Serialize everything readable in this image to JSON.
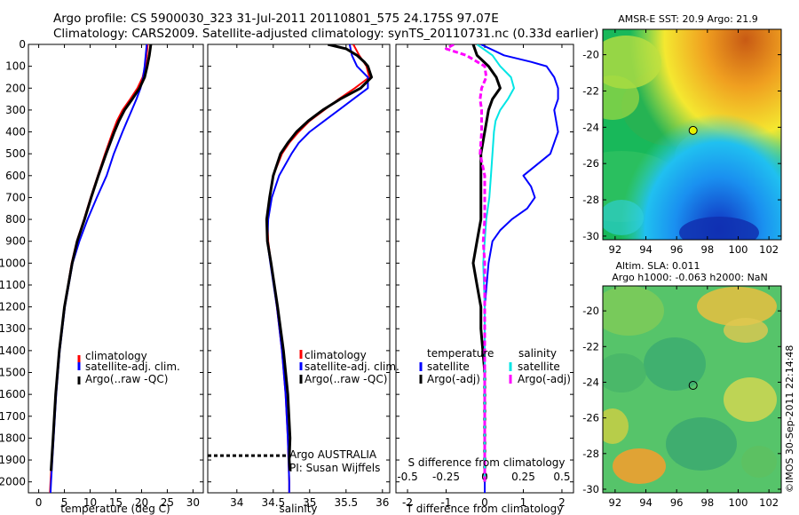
{
  "title_line1": "Argo profile: CS 5900030_323 31-Jul-2011 20110801_575 24.175S 97.07E",
  "title_line2": "Climatology: CARS2009. Satellite-adjusted climatology: synTS_20110731.nc (0.33d earlier)",
  "side_stamp": "©IMOS 30-Sep-2011 22:14:48",
  "colors": {
    "climatology": "#ff0000",
    "satellite": "#0000ff",
    "argo": "#000000",
    "cyan": "#00e5e5",
    "magenta": "#ff00ff"
  },
  "chart_data": [
    {
      "type": "line",
      "xlabel": "temperature (deg C)",
      "xlim": [
        -2,
        32
      ],
      "xticks": [
        0,
        5,
        10,
        15,
        20,
        25,
        30
      ],
      "ylim": [
        0,
        2050
      ],
      "yticks": [
        0,
        100,
        200,
        300,
        400,
        500,
        600,
        700,
        800,
        900,
        1000,
        1100,
        1200,
        1300,
        1400,
        1500,
        1600,
        1700,
        1800,
        1900,
        2000
      ],
      "legend": [
        "climatology",
        "satellite-adj. clim.",
        "Argo(..raw -QC)"
      ],
      "series": [
        {
          "name": "climatology",
          "color": "#ff0000",
          "depth": [
            0,
            50,
            100,
            150,
            200,
            250,
            300,
            350,
            400,
            500,
            600,
            700,
            800,
            900,
            1000,
            1200,
            1400,
            1600,
            1800,
            2000,
            2050
          ],
          "values": [
            21.2,
            21.0,
            20.7,
            20.2,
            19.2,
            17.8,
            16.3,
            15.2,
            14.4,
            12.9,
            11.5,
            10.1,
            8.8,
            7.4,
            6.4,
            5.0,
            4.0,
            3.3,
            2.8,
            2.3,
            2.2
          ]
        },
        {
          "name": "satellite-adj. clim.",
          "color": "#0000ff",
          "depth": [
            0,
            50,
            100,
            150,
            200,
            250,
            300,
            350,
            400,
            500,
            600,
            700,
            800,
            900,
            1000,
            1200,
            1400,
            1600,
            1800,
            2000,
            2050
          ],
          "values": [
            21.0,
            20.8,
            20.6,
            20.3,
            19.8,
            19.0,
            18.1,
            17.2,
            16.3,
            14.6,
            13.2,
            11.3,
            9.5,
            7.9,
            6.6,
            5.1,
            4.1,
            3.4,
            2.9,
            2.4,
            2.3
          ]
        },
        {
          "name": "Argo(..raw -QC)",
          "color": "#000000",
          "depth": [
            0,
            50,
            100,
            150,
            200,
            250,
            300,
            350,
            400,
            500,
            600,
            700,
            800,
            900,
            1000,
            1200,
            1400,
            1600,
            1800,
            1950
          ],
          "values": [
            21.8,
            21.5,
            21.1,
            20.6,
            19.6,
            18.2,
            16.7,
            15.6,
            14.7,
            13.1,
            11.6,
            10.2,
            8.9,
            7.5,
            6.5,
            5.0,
            4.0,
            3.3,
            2.8,
            2.4
          ]
        }
      ]
    },
    {
      "type": "line",
      "xlabel": "salinity",
      "xlim": [
        33.6,
        36.1
      ],
      "xticks": [
        34,
        34.5,
        35,
        35.5,
        36
      ],
      "xticklabels": [
        "34",
        "34.5",
        "35",
        "35.5",
        "36"
      ],
      "ylim": [
        0,
        2050
      ],
      "legend": [
        "climatology",
        "satellite-adj. clim.",
        "Argo(..raw -QC)"
      ],
      "annotation_line1": "Argo AUSTRALIA",
      "annotation_line2": "PI: Susan Wijffels",
      "series": [
        {
          "name": "climatology",
          "color": "#ff0000",
          "depth": [
            0,
            50,
            100,
            150,
            200,
            250,
            300,
            350,
            400,
            450,
            500,
            600,
            700,
            800,
            900,
            1000,
            1200,
            1400,
            1600,
            1800,
            2000,
            2050
          ],
          "values": [
            35.6,
            35.68,
            35.78,
            35.82,
            35.62,
            35.4,
            35.2,
            35.0,
            34.85,
            34.72,
            34.62,
            34.5,
            34.45,
            34.42,
            34.43,
            34.47,
            34.55,
            34.62,
            34.67,
            34.7,
            34.72,
            34.72
          ]
        },
        {
          "name": "satellite-adj. clim.",
          "color": "#0000ff",
          "depth": [
            0,
            50,
            100,
            150,
            200,
            250,
            300,
            350,
            400,
            450,
            500,
            600,
            700,
            800,
            900,
            1000,
            1200,
            1400,
            1600,
            1800,
            2000,
            2050
          ],
          "values": [
            35.55,
            35.58,
            35.65,
            35.8,
            35.8,
            35.6,
            35.4,
            35.2,
            35.0,
            34.85,
            34.75,
            34.58,
            34.48,
            34.43,
            34.42,
            34.46,
            34.55,
            34.62,
            34.67,
            34.7,
            34.72,
            34.72
          ]
        },
        {
          "name": "Argo(..raw -QC)",
          "color": "#000000",
          "depth": [
            0,
            20,
            50,
            80,
            100,
            150,
            200,
            250,
            300,
            350,
            400,
            450,
            500,
            600,
            700,
            800,
            900,
            1000,
            1200,
            1400,
            1600,
            1800,
            1900,
            1950
          ],
          "values": [
            35.25,
            35.5,
            35.65,
            35.75,
            35.8,
            35.85,
            35.7,
            35.42,
            35.18,
            34.98,
            34.82,
            34.7,
            34.6,
            34.5,
            34.45,
            34.41,
            34.42,
            34.47,
            34.56,
            34.64,
            34.7,
            34.73,
            34.72,
            34.73
          ]
        },
        {
          "name": "",
          "color": "#000000",
          "dashed": true,
          "depth": [
            1880,
            1880
          ],
          "values": [
            33.6,
            34.7
          ]
        }
      ]
    },
    {
      "type": "line",
      "xlabel": "T difference from climatology",
      "top_xlabel": "S difference from climatology",
      "xlim": [
        -2.3,
        2.3
      ],
      "xticks": [
        -2,
        -1,
        0,
        1,
        2
      ],
      "top_xticks": [
        -0.5,
        -0.25,
        0,
        0.25,
        0.5
      ],
      "top_xticklabels": [
        "-0.5",
        "-0.25",
        "0",
        "0.25",
        "0.5"
      ],
      "ylim": [
        0,
        2050
      ],
      "legend_temperature_title": "temperature",
      "legend_salinity_title": "salinity",
      "legend_temperature": [
        "satellite",
        "Argo(-adj)"
      ],
      "legend_salinity": [
        "satellite",
        "Argo(-adj)"
      ],
      "series": [
        {
          "name": "satellite",
          "color": "#0000ff",
          "depth": [
            0,
            50,
            80,
            100,
            150,
            200,
            250,
            300,
            400,
            500,
            600,
            650,
            700,
            750,
            800,
            850,
            900,
            1000,
            1200,
            1500,
            2000,
            2050
          ],
          "values": [
            -0.1,
            0.5,
            1.2,
            1.6,
            1.8,
            1.9,
            1.9,
            1.8,
            1.9,
            1.7,
            1.0,
            1.2,
            1.3,
            1.1,
            0.7,
            0.4,
            0.2,
            0.1,
            0.0,
            0.0,
            0.0,
            0.0
          ]
        },
        {
          "name": "Argo(-adj)",
          "color": "#000000",
          "depth": [
            0,
            50,
            100,
            150,
            200,
            250,
            300,
            400,
            500,
            600,
            700,
            800,
            900,
            1000,
            1100,
            1200,
            1300,
            1500,
            1800,
            2000
          ],
          "values": [
            -0.3,
            -0.2,
            0.1,
            0.3,
            0.4,
            0.2,
            0.1,
            0.0,
            -0.1,
            -0.1,
            -0.1,
            -0.1,
            -0.2,
            -0.3,
            -0.2,
            -0.1,
            -0.1,
            0.0,
            0.0,
            0.0
          ]
        },
        {
          "name": "satellite",
          "color": "#00e5e5",
          "depth": [
            0,
            50,
            100,
            150,
            200,
            250,
            300,
            350,
            400,
            500,
            600,
            700,
            800,
            900,
            1000,
            1200,
            1500,
            2000
          ],
          "values": [
            -0.05,
            0.05,
            0.1,
            0.17,
            0.19,
            0.15,
            0.1,
            0.07,
            0.06,
            0.05,
            0.04,
            0.03,
            0.01,
            0.0,
            -0.01,
            0.0,
            0.0,
            0.0
          ]
        },
        {
          "name": "Argo(-adj)",
          "color": "#ff00ff",
          "depth": [
            0,
            20,
            50,
            100,
            150,
            200,
            250,
            300,
            400,
            500,
            600,
            700,
            800,
            900,
            1000,
            1200,
            1500,
            1800,
            2000
          ],
          "values": [
            -0.2,
            -0.25,
            -0.12,
            0.0,
            0.01,
            -0.02,
            -0.03,
            -0.02,
            -0.02,
            -0.03,
            0.0,
            0.0,
            0.0,
            -0.01,
            0.0,
            0.0,
            0.0,
            0.0,
            0.0
          ]
        }
      ]
    },
    {
      "type": "heatmap",
      "title": "AMSR-E SST: 20.9 Argo: 21.9",
      "xticks": [
        92,
        94,
        96,
        98,
        100,
        102
      ],
      "yticks": [
        -20,
        -22,
        -24,
        -26,
        -28,
        -30
      ],
      "xlim": [
        91.2,
        102.8
      ],
      "ylim": [
        -30.2,
        -18.6
      ],
      "point": {
        "lon": 97.07,
        "lat": -24.175
      }
    },
    {
      "type": "heatmap",
      "title_line1": "Altim. SLA: 0.011",
      "title_line2": "Argo h1000: -0.063 h2000: NaN",
      "xticks": [
        92,
        94,
        96,
        98,
        100,
        102
      ],
      "yticks": [
        -20,
        -22,
        -24,
        -26,
        -28,
        -30
      ],
      "xlim": [
        91.2,
        102.8
      ],
      "ylim": [
        -30.2,
        -18.6
      ],
      "point": {
        "lon": 97.07,
        "lat": -24.175
      }
    }
  ]
}
